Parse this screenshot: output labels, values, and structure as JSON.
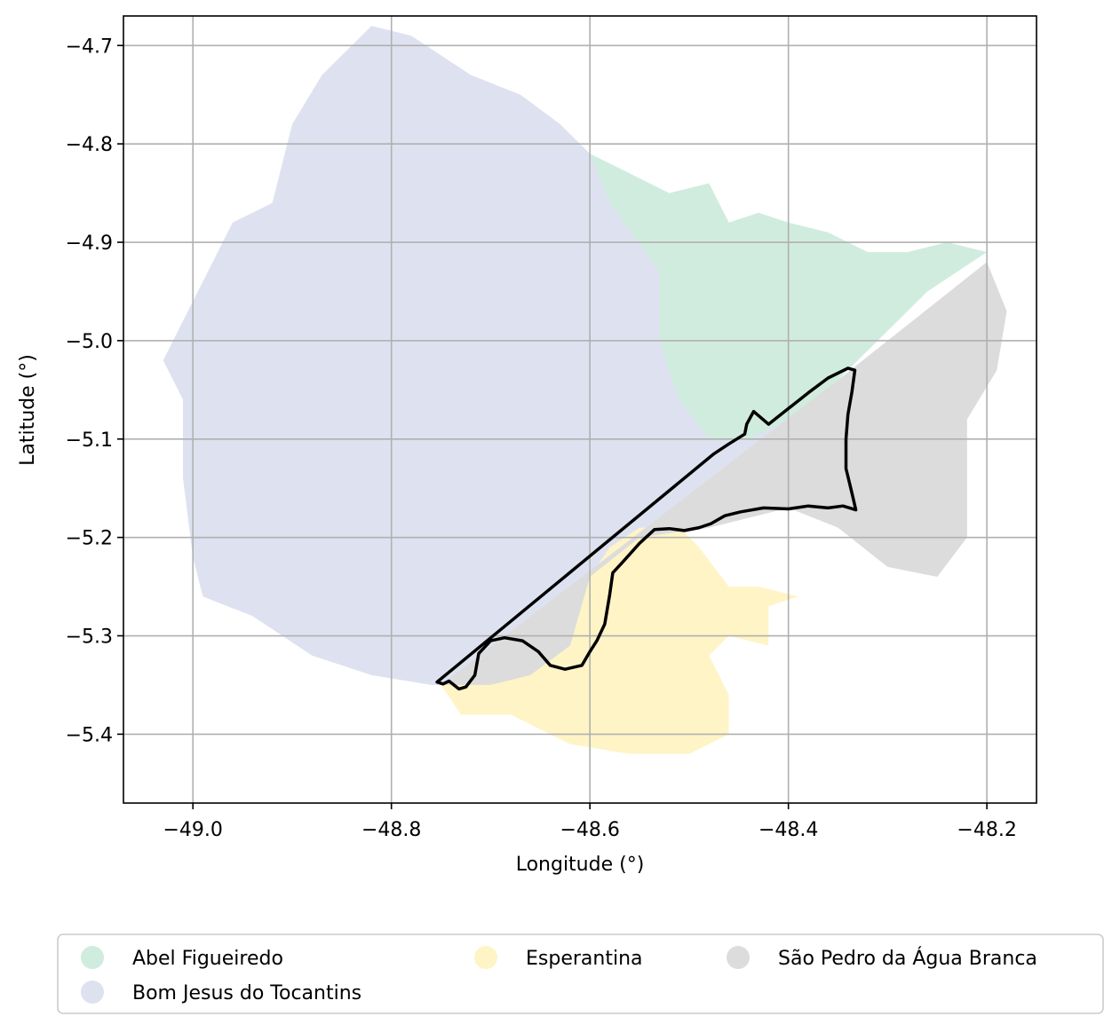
{
  "chart_data": {
    "type": "map",
    "xlabel": "Longitude (°)",
    "ylabel": "Latitude (°)",
    "xlim": [
      -49.07,
      -48.15
    ],
    "ylim": [
      -5.47,
      -4.67
    ],
    "grid": true,
    "x_ticks": [
      {
        "value": -49.0,
        "label": "−49.0"
      },
      {
        "value": -48.8,
        "label": "−48.8"
      },
      {
        "value": -48.6,
        "label": "−48.6"
      },
      {
        "value": -48.4,
        "label": "−48.4"
      },
      {
        "value": -48.2,
        "label": "−48.2"
      }
    ],
    "y_ticks": [
      {
        "value": -4.7,
        "label": "−4.7"
      },
      {
        "value": -4.8,
        "label": "−4.8"
      },
      {
        "value": -4.9,
        "label": "−4.9"
      },
      {
        "value": -5.0,
        "label": "−5.0"
      },
      {
        "value": -5.1,
        "label": "−5.1"
      },
      {
        "value": -5.2,
        "label": "−5.2"
      },
      {
        "value": -5.3,
        "label": "−5.3"
      },
      {
        "value": -5.4,
        "label": "−5.4"
      }
    ],
    "legend_placement": "bottom",
    "legend": [
      {
        "name": "Abel Figueiredo",
        "color": "#d0ecde"
      },
      {
        "name": "Bom Jesus do Tocantins",
        "color": "#dee2f0"
      },
      {
        "name": "Esperantina",
        "color": "#fff4c6"
      },
      {
        "name": "São Pedro da Água Branca",
        "color": "#dcdcdc"
      }
    ],
    "regions": [
      {
        "name": "Bom Jesus do Tocantins",
        "color": "#dee2f0",
        "coords": [
          [
            -48.82,
            -4.68
          ],
          [
            -48.78,
            -4.69
          ],
          [
            -48.72,
            -4.73
          ],
          [
            -48.67,
            -4.75
          ],
          [
            -48.63,
            -4.78
          ],
          [
            -48.6,
            -4.81
          ],
          [
            -48.56,
            -4.83
          ],
          [
            -48.53,
            -4.87
          ],
          [
            -48.5,
            -4.9
          ],
          [
            -48.47,
            -4.93
          ],
          [
            -48.48,
            -4.98
          ],
          [
            -48.47,
            -5.04
          ],
          [
            -48.45,
            -5.09
          ],
          [
            -48.42,
            -5.09
          ],
          [
            -48.38,
            -5.06
          ],
          [
            -48.33,
            -5.04
          ],
          [
            -48.33,
            -5.17
          ],
          [
            -48.4,
            -5.17
          ],
          [
            -48.48,
            -5.19
          ],
          [
            -48.58,
            -5.21
          ],
          [
            -48.62,
            -5.31
          ],
          [
            -48.66,
            -5.34
          ],
          [
            -48.7,
            -5.35
          ],
          [
            -48.76,
            -5.35
          ],
          [
            -48.82,
            -5.34
          ],
          [
            -48.88,
            -5.32
          ],
          [
            -48.94,
            -5.28
          ],
          [
            -48.99,
            -5.26
          ],
          [
            -49.0,
            -5.22
          ],
          [
            -49.01,
            -5.14
          ],
          [
            -49.01,
            -5.06
          ],
          [
            -49.03,
            -5.02
          ],
          [
            -49.01,
            -4.98
          ],
          [
            -48.99,
            -4.94
          ],
          [
            -48.96,
            -4.88
          ],
          [
            -48.92,
            -4.86
          ],
          [
            -48.9,
            -4.78
          ],
          [
            -48.87,
            -4.73
          ]
        ]
      },
      {
        "name": "Abel Figueiredo",
        "color": "#d0ecde",
        "coords": [
          [
            -48.6,
            -4.81
          ],
          [
            -48.56,
            -4.83
          ],
          [
            -48.52,
            -4.85
          ],
          [
            -48.48,
            -4.84
          ],
          [
            -48.46,
            -4.88
          ],
          [
            -48.43,
            -4.87
          ],
          [
            -48.4,
            -4.88
          ],
          [
            -48.36,
            -4.89
          ],
          [
            -48.32,
            -4.91
          ],
          [
            -48.28,
            -4.91
          ],
          [
            -48.24,
            -4.9
          ],
          [
            -48.2,
            -4.91
          ],
          [
            -48.26,
            -4.95
          ],
          [
            -48.3,
            -4.99
          ],
          [
            -48.35,
            -5.04
          ],
          [
            -48.4,
            -5.08
          ],
          [
            -48.44,
            -5.1
          ],
          [
            -48.48,
            -5.1
          ],
          [
            -48.51,
            -5.06
          ],
          [
            -48.53,
            -5.0
          ],
          [
            -48.53,
            -4.93
          ],
          [
            -48.58,
            -4.86
          ]
        ]
      },
      {
        "name": "Esperantina",
        "color": "#fff4c6",
        "coords": [
          [
            -48.75,
            -5.35
          ],
          [
            -48.73,
            -5.38
          ],
          [
            -48.68,
            -5.38
          ],
          [
            -48.62,
            -5.41
          ],
          [
            -48.56,
            -5.42
          ],
          [
            -48.5,
            -5.42
          ],
          [
            -48.46,
            -5.4
          ],
          [
            -48.46,
            -5.36
          ],
          [
            -48.48,
            -5.32
          ],
          [
            -48.46,
            -5.3
          ],
          [
            -48.42,
            -5.31
          ],
          [
            -48.42,
            -5.27
          ],
          [
            -48.39,
            -5.26
          ],
          [
            -48.43,
            -5.25
          ],
          [
            -48.46,
            -5.25
          ],
          [
            -48.49,
            -5.21
          ],
          [
            -48.51,
            -5.19
          ],
          [
            -48.55,
            -5.19
          ],
          [
            -48.58,
            -5.21
          ],
          [
            -48.6,
            -5.24
          ],
          [
            -48.62,
            -5.31
          ],
          [
            -48.66,
            -5.34
          ],
          [
            -48.7,
            -5.34
          ]
        ]
      },
      {
        "name": "São Pedro da Água Branca",
        "color": "#dcdcdc",
        "coords": [
          [
            -48.75,
            -5.35
          ],
          [
            -48.35,
            -5.04
          ],
          [
            -48.3,
            -5.0
          ],
          [
            -48.2,
            -4.92
          ],
          [
            -48.18,
            -4.97
          ],
          [
            -48.19,
            -5.03
          ],
          [
            -48.22,
            -5.08
          ],
          [
            -48.22,
            -5.13
          ],
          [
            -48.22,
            -5.2
          ],
          [
            -48.25,
            -5.24
          ],
          [
            -48.3,
            -5.23
          ],
          [
            -48.35,
            -5.19
          ],
          [
            -48.4,
            -5.17
          ],
          [
            -48.48,
            -5.19
          ],
          [
            -48.55,
            -5.2
          ],
          [
            -48.6,
            -5.24
          ],
          [
            -48.62,
            -5.31
          ],
          [
            -48.66,
            -5.34
          ],
          [
            -48.7,
            -5.35
          ]
        ]
      }
    ],
    "highlight_outline": {
      "stroke": "#000000",
      "coords": [
        [
          -48.754,
          -5.347
        ],
        [
          -48.748,
          -5.349
        ],
        [
          -48.742,
          -5.346
        ],
        [
          -48.732,
          -5.354
        ],
        [
          -48.725,
          -5.352
        ],
        [
          -48.716,
          -5.34
        ],
        [
          -48.712,
          -5.318
        ],
        [
          -48.7,
          -5.305
        ],
        [
          -48.686,
          -5.302
        ],
        [
          -48.668,
          -5.305
        ],
        [
          -48.652,
          -5.316
        ],
        [
          -48.64,
          -5.33
        ],
        [
          -48.625,
          -5.334
        ],
        [
          -48.608,
          -5.33
        ],
        [
          -48.6,
          -5.316
        ],
        [
          -48.593,
          -5.305
        ],
        [
          -48.585,
          -5.288
        ],
        [
          -48.58,
          -5.258
        ],
        [
          -48.577,
          -5.236
        ],
        [
          -48.566,
          -5.224
        ],
        [
          -48.55,
          -5.206
        ],
        [
          -48.535,
          -5.192
        ],
        [
          -48.52,
          -5.191
        ],
        [
          -48.505,
          -5.193
        ],
        [
          -48.49,
          -5.19
        ],
        [
          -48.478,
          -5.186
        ],
        [
          -48.464,
          -5.178
        ],
        [
          -48.448,
          -5.174
        ],
        [
          -48.425,
          -5.17
        ],
        [
          -48.4,
          -5.171
        ],
        [
          -48.38,
          -5.168
        ],
        [
          -48.36,
          -5.17
        ],
        [
          -48.345,
          -5.168
        ],
        [
          -48.332,
          -5.172
        ],
        [
          -48.336,
          -5.155
        ],
        [
          -48.342,
          -5.13
        ],
        [
          -48.342,
          -5.1
        ],
        [
          -48.34,
          -5.075
        ],
        [
          -48.336,
          -5.052
        ],
        [
          -48.333,
          -5.03
        ],
        [
          -48.34,
          -5.028
        ],
        [
          -48.36,
          -5.038
        ],
        [
          -48.38,
          -5.053
        ],
        [
          -48.42,
          -5.085
        ],
        [
          -48.428,
          -5.078
        ],
        [
          -48.435,
          -5.072
        ],
        [
          -48.442,
          -5.085
        ],
        [
          -48.444,
          -5.095
        ],
        [
          -48.46,
          -5.105
        ],
        [
          -48.475,
          -5.115
        ],
        [
          -48.754,
          -5.347
        ]
      ]
    }
  }
}
